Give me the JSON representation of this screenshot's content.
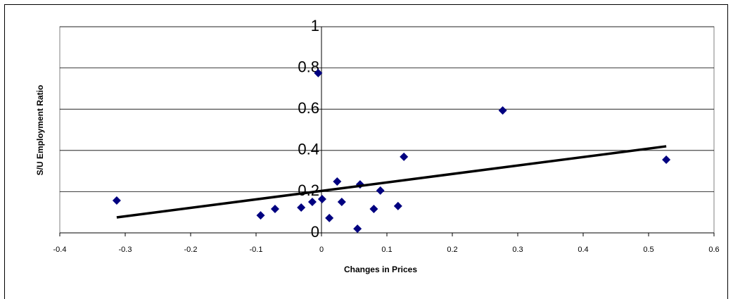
{
  "chart_data": {
    "type": "scatter",
    "x_label": "Changes in Prices",
    "y_label": "S/U Employment Ratio",
    "x": [
      -0.313,
      -0.093,
      -0.071,
      -0.031,
      -0.014,
      0.001,
      -0.005,
      0.012,
      0.024,
      0.031,
      0.055,
      0.059,
      0.08,
      0.09,
      0.117,
      0.126,
      0.277,
      0.527
    ],
    "values": [
      0.157,
      0.085,
      0.116,
      0.123,
      0.15,
      0.164,
      0.775,
      0.072,
      0.249,
      0.15,
      0.02,
      0.235,
      0.116,
      0.205,
      0.13,
      0.369,
      0.594,
      0.355
    ],
    "color": "#000080",
    "trendline": {
      "x": [
        -0.313,
        0.527
      ],
      "values": [
        0.075,
        0.42
      ],
      "color": "#000000"
    },
    "xlim": [
      -0.4,
      0.6
    ],
    "xticks": [
      -0.4,
      -0.3,
      -0.2,
      -0.1,
      0,
      0.1,
      0.2,
      0.3,
      0.4,
      0.5,
      0.6
    ],
    "ylim": [
      0,
      1
    ],
    "yticks": [
      0,
      0.2,
      0.4,
      0.6,
      0.8,
      1
    ],
    "grid": true
  }
}
